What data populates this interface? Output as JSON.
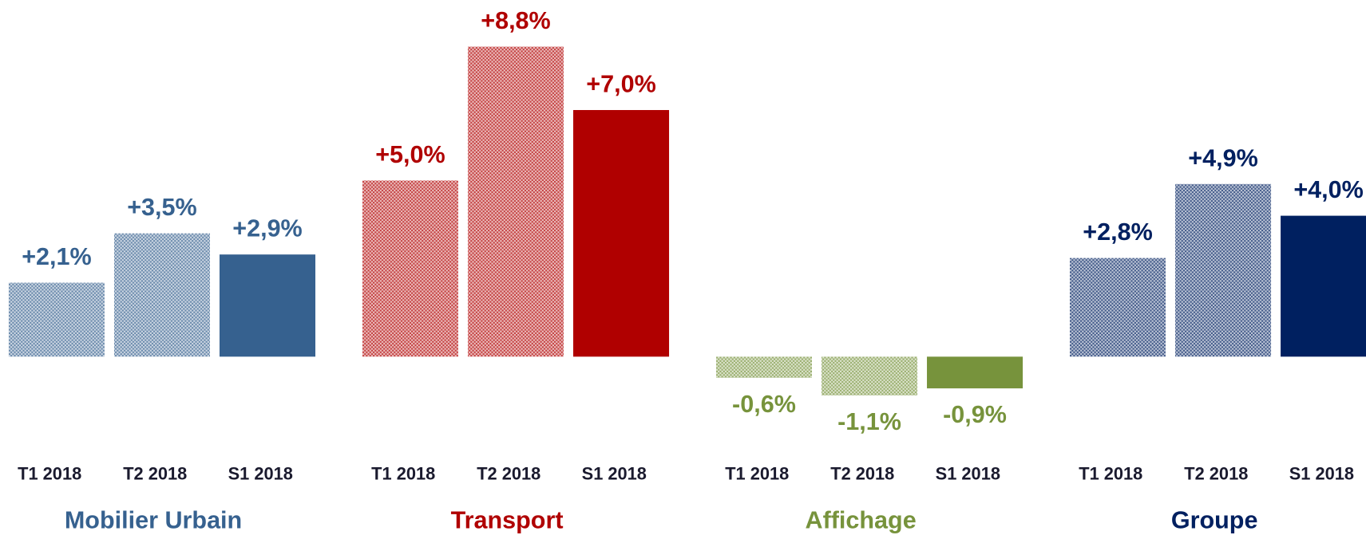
{
  "chart_data": {
    "type": "bar",
    "categories": [
      "T1 2018",
      "T2 2018",
      "S1 2018"
    ],
    "series": [
      {
        "name": "Mobilier Urbain",
        "color": "#36618f",
        "values": [
          2.1,
          3.5,
          2.9
        ],
        "value_labels": [
          "+2,1%",
          "+3,5%",
          "+2,9%"
        ]
      },
      {
        "name": "Transport",
        "color": "#b00000",
        "values": [
          5.0,
          8.8,
          7.0
        ],
        "value_labels": [
          "+5,0%",
          "+8,8%",
          "+7,0%"
        ]
      },
      {
        "name": "Affichage",
        "color": "#77933c",
        "values": [
          -0.6,
          -1.1,
          -0.9
        ],
        "value_labels": [
          "-0,6%",
          "-1,1%",
          "-0,9%"
        ]
      },
      {
        "name": "Groupe",
        "color": "#002060",
        "values": [
          2.8,
          4.9,
          4.0
        ],
        "value_labels": [
          "+2,8%",
          "+4,9%",
          "+4,0%"
        ]
      }
    ]
  }
}
